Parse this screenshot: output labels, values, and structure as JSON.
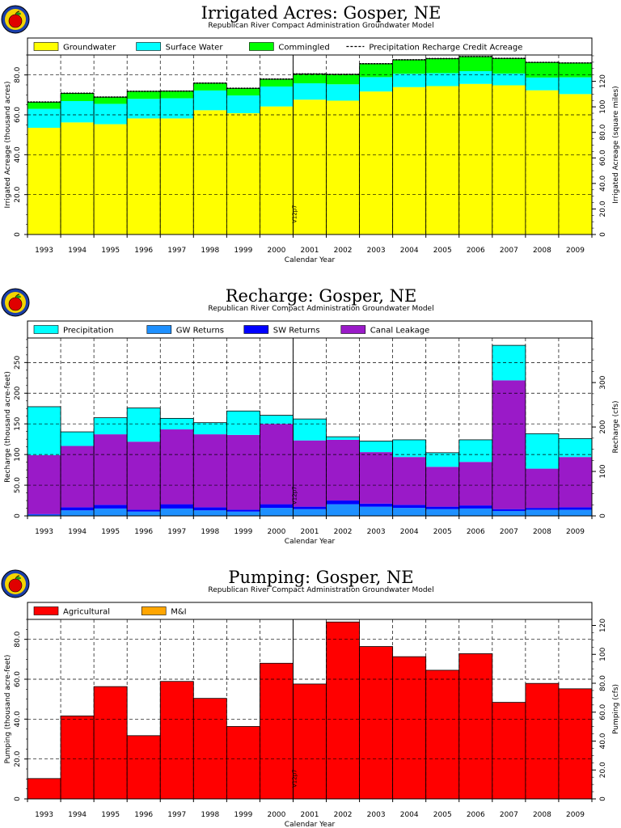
{
  "chart_data": [
    {
      "type": "bar",
      "title": "Irrigated Acres: Gosper, NE",
      "subtitle": "Republican River Compact Administration Groundwater Model",
      "xlabel": "Calendar Year",
      "ylabel": "Irrigated Acreage (thousand acres)",
      "ylabel_right": "Irrigated Acreage (square miles)",
      "ylim": [
        0,
        90
      ],
      "yticks": [
        0,
        20,
        40,
        60,
        80
      ],
      "ytick_labels": [
        "0",
        "20.0",
        "40.0",
        "60.0",
        "80.0"
      ],
      "ylim_right": [
        0,
        140.625
      ],
      "yticks_right": [
        0,
        20,
        40,
        60,
        80,
        100,
        120
      ],
      "ytick_labels_right": [
        "0",
        "20.0",
        "40.0",
        "60.0",
        "80.0",
        "100",
        "120"
      ],
      "categories": [
        "1993",
        "1994",
        "1995",
        "1996",
        "1997",
        "1998",
        "1999",
        "2000",
        "2001",
        "2002",
        "2003",
        "2004",
        "2005",
        "2006",
        "2007",
        "2008",
        "2009"
      ],
      "series": [
        {
          "name": "Groundwater",
          "color": "#ffff00",
          "values": [
            53.5,
            56.2,
            55.3,
            58.2,
            58.2,
            62.3,
            60.8,
            64.2,
            67.6,
            67.1,
            71.7,
            73.9,
            74.4,
            75.5,
            74.8,
            72.3,
            70.4
          ]
        },
        {
          "name": "Surface Water",
          "color": "#00ffff",
          "values": [
            9.5,
            10.7,
            10.2,
            9.8,
            10.1,
            9.9,
            8.9,
            10.0,
            8.2,
            8.2,
            7.2,
            6.7,
            6.5,
            6.4,
            5.9,
            6.4,
            8.4
          ]
        },
        {
          "name": "Commingled",
          "color": "#00ff00",
          "values": [
            3.4,
            3.9,
            3.4,
            3.8,
            3.6,
            3.7,
            3.6,
            3.7,
            4.7,
            5.0,
            6.7,
            7.0,
            7.3,
            7.3,
            7.6,
            7.6,
            7.2
          ]
        }
      ],
      "line_series": {
        "name": "Precipitation Recharge Credit Acreage",
        "style": "dashed",
        "values": [
          66.4,
          70.8,
          68.9,
          71.8,
          71.9,
          75.9,
          73.3,
          77.9,
          80.5,
          80.3,
          85.6,
          87.6,
          88.2,
          89.2,
          88.3,
          86.3,
          86.0
        ]
      },
      "grid": true,
      "legend": "top",
      "annotation": {
        "text": "V12p7",
        "year": "2000"
      }
    },
    {
      "type": "bar",
      "title": "Recharge: Gosper, NE",
      "subtitle": "Republican River Compact Administration Groundwater Model",
      "xlabel": "Calendar Year",
      "ylabel": "Recharge (thousand acre-feet)",
      "ylabel_right": "Recharge (cfs)",
      "ylim": [
        0,
        290
      ],
      "yticks": [
        0,
        50,
        100,
        150,
        200,
        250
      ],
      "ytick_labels": [
        "0",
        "50.0",
        "100",
        "150",
        "200",
        "250"
      ],
      "ylim_right": [
        0,
        400.3
      ],
      "yticks_right": [
        0,
        100,
        200,
        300
      ],
      "ytick_labels_right": [
        "0",
        "100",
        "200",
        "300"
      ],
      "categories": [
        "1993",
        "1994",
        "1995",
        "1996",
        "1997",
        "1998",
        "1999",
        "2000",
        "2001",
        "2002",
        "2003",
        "2004",
        "2005",
        "2006",
        "2007",
        "2008",
        "2009"
      ],
      "series": [
        {
          "name": "GW Returns",
          "color": "#1e90ff",
          "values": [
            2,
            9,
            12,
            7,
            12,
            9,
            7,
            13,
            11,
            19,
            15,
            13,
            11,
            12,
            8,
            10,
            10
          ]
        },
        {
          "name": "SW Returns",
          "color": "#0000ff",
          "values": [
            1,
            5,
            6,
            3,
            7,
            5,
            3,
            6,
            4,
            6,
            5,
            5,
            4,
            5,
            3,
            3,
            4
          ]
        },
        {
          "name": "Canal Leakage",
          "color": "#9a1ac8",
          "values": [
            96,
            100,
            115,
            111,
            122,
            119,
            122,
            131,
            108,
            99,
            84,
            78,
            65,
            71,
            210,
            64,
            82
          ]
        },
        {
          "name": "Precipitation",
          "color": "#00ffff",
          "values": [
            79,
            23,
            27,
            55,
            18,
            19,
            39,
            14,
            35,
            5,
            18,
            28,
            23,
            36,
            57,
            57,
            30
          ]
        }
      ],
      "legend_order": [
        "Precipitation",
        "GW Returns",
        "SW Returns",
        "Canal Leakage"
      ],
      "grid": true,
      "legend": "top",
      "annotation": {
        "text": "V12p7",
        "year": "2000"
      }
    },
    {
      "type": "bar",
      "title": "Pumping: Gosper, NE",
      "subtitle": "Republican River Compact Administration Groundwater Model",
      "xlabel": "Calendar Year",
      "ylabel": "Pumping (thousand acre-feet)",
      "ylabel_right": "Pumping (cfs)",
      "ylim": [
        0,
        90
      ],
      "yticks": [
        0,
        20,
        40,
        60,
        80
      ],
      "ytick_labels": [
        "0",
        "20.0",
        "40.0",
        "60.0",
        "80.0"
      ],
      "ylim_right": [
        0,
        124.2
      ],
      "yticks_right": [
        0,
        20,
        40,
        60,
        80,
        100,
        120
      ],
      "ytick_labels_right": [
        "0",
        "20.0",
        "40.0",
        "60.0",
        "80.0",
        "100",
        "120"
      ],
      "categories": [
        "1993",
        "1994",
        "1995",
        "1996",
        "1997",
        "1998",
        "1999",
        "2000",
        "2001",
        "2002",
        "2003",
        "2004",
        "2005",
        "2006",
        "2007",
        "2008",
        "2009"
      ],
      "series": [
        {
          "name": "Agricultural",
          "color": "#ff0000",
          "values": [
            10.2,
            41.6,
            56.3,
            31.7,
            58.9,
            50.4,
            36.3,
            68.0,
            57.6,
            88.7,
            76.4,
            71.3,
            64.5,
            72.8,
            48.4,
            57.9,
            55.2
          ]
        },
        {
          "name": "M&I",
          "color": "#ffa500",
          "values": [
            0,
            0,
            0,
            0,
            0,
            0,
            0,
            0,
            0,
            0,
            0,
            0,
            0,
            0,
            0,
            0,
            0
          ]
        }
      ],
      "grid": true,
      "legend": "top",
      "annotation": {
        "text": "V12p7",
        "year": "2000"
      }
    }
  ]
}
